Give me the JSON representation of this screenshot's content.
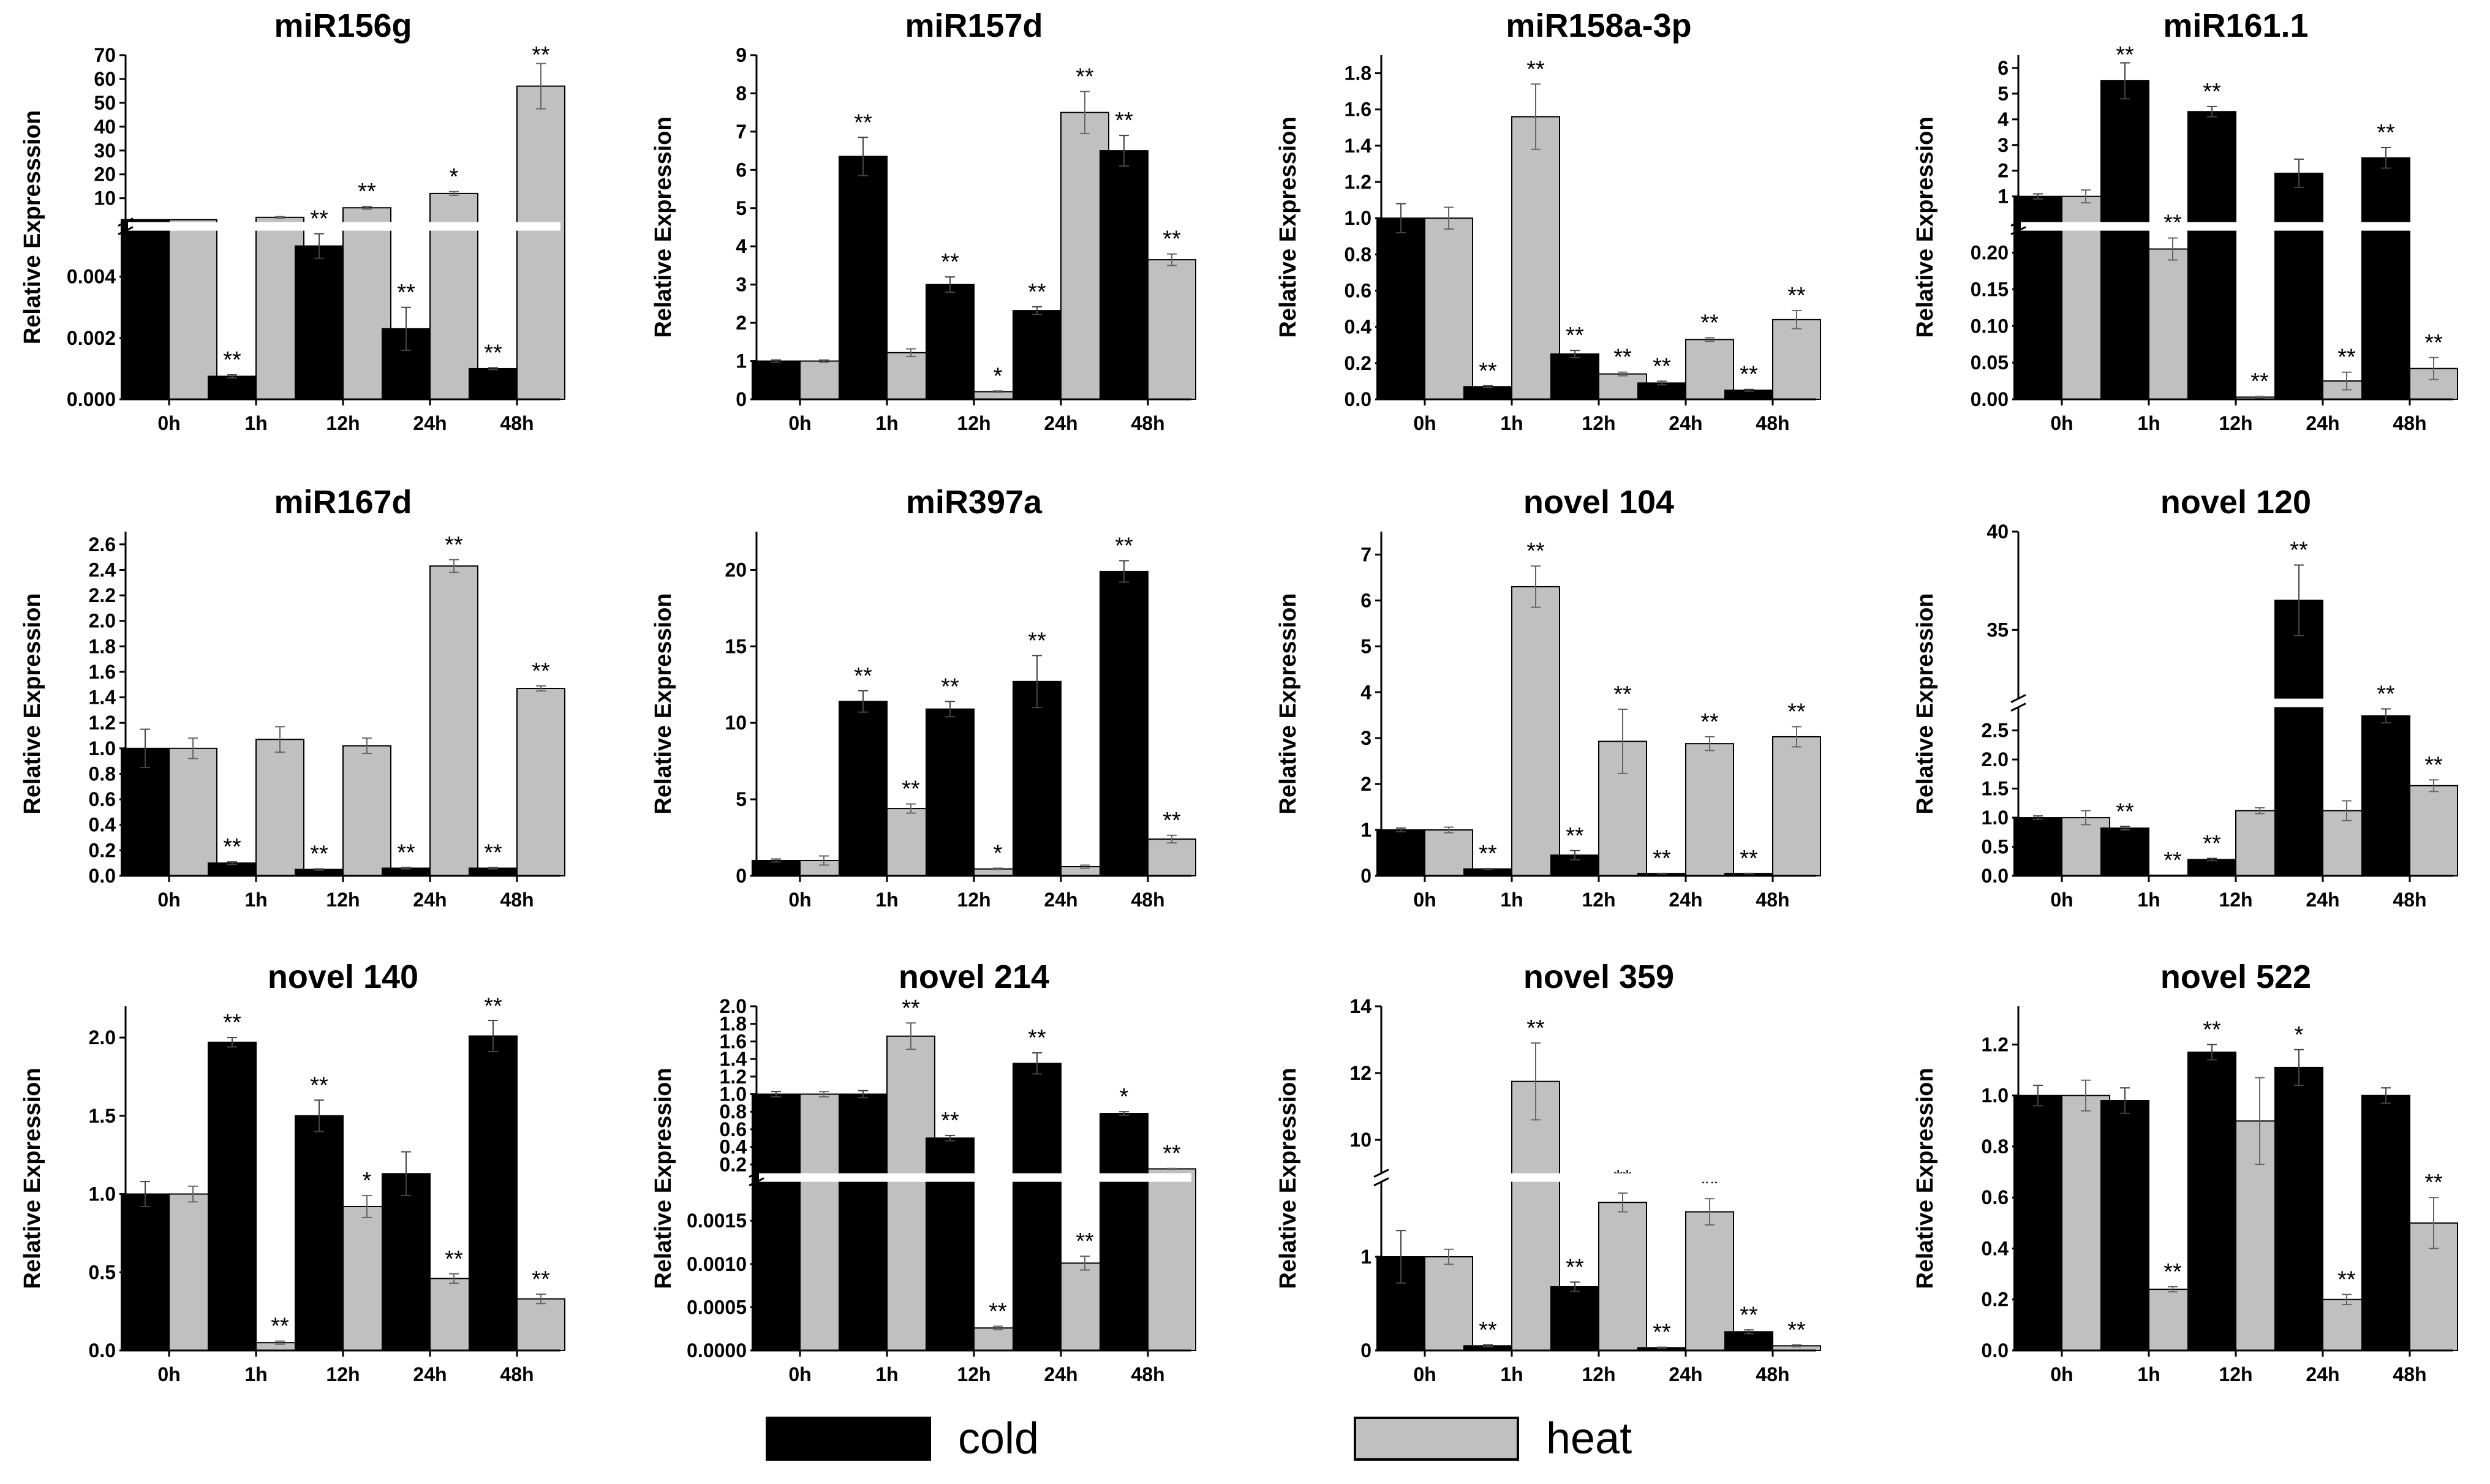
{
  "legend": {
    "cold_label": "cold",
    "heat_label": "heat"
  },
  "colors": {
    "cold": "#000000",
    "heat": "#c0c0c0",
    "axis": "#000000"
  },
  "chart_data": [
    {
      "type": "bar",
      "title": "miR156g",
      "ylabel": "Relative Expresssion",
      "categories": [
        "0h",
        "1h",
        "12h",
        "24h",
        "48h"
      ],
      "axis_break": {
        "lower_range": [
          0,
          0.0055
        ],
        "upper_range": [
          0,
          70
        ],
        "lower_ticks": [
          "0.000",
          "0.002",
          "0.004"
        ],
        "upper_ticks": [
          "10",
          "20",
          "30",
          "40",
          "50",
          "60",
          "70"
        ]
      },
      "series": [
        {
          "name": "cold",
          "values": [
            1.0,
            0.00075,
            0.005,
            0.0023,
            0.001
          ],
          "errors": [
            0,
            5e-05,
            0.0004,
            0.0007,
            3e-05
          ],
          "sig": [
            "",
            "**",
            "**",
            "**",
            "**"
          ]
        },
        {
          "name": "heat",
          "values": [
            1.0,
            2.0,
            6.0,
            12.0,
            57.0
          ],
          "errors": [
            0,
            0.3,
            0.6,
            0.8,
            9.5
          ],
          "sig": [
            "",
            "",
            "**",
            "*",
            "**"
          ]
        }
      ]
    },
    {
      "type": "bar",
      "title": "miR157d",
      "ylabel": "Relative Expression",
      "categories": [
        "0h",
        "1h",
        "12h",
        "24h",
        "48h"
      ],
      "ylim": [
        0,
        9
      ],
      "yticks": [
        "0",
        "1",
        "2",
        "3",
        "4",
        "5",
        "6",
        "7",
        "8",
        "9"
      ],
      "series": [
        {
          "name": "cold",
          "values": [
            1.0,
            6.35,
            3.0,
            2.32,
            6.5
          ],
          "errors": [
            0.03,
            0.5,
            0.2,
            0.1,
            0.4
          ],
          "sig": [
            "",
            "**",
            "**",
            "**",
            "**"
          ]
        },
        {
          "name": "heat",
          "values": [
            1.0,
            1.22,
            0.2,
            7.5,
            3.65
          ],
          "errors": [
            0.03,
            0.1,
            0.02,
            0.55,
            0.15
          ],
          "sig": [
            "",
            "",
            "*",
            "**",
            "**"
          ]
        }
      ]
    },
    {
      "type": "bar",
      "title": "miR158a-3p",
      "ylabel": "Relative Expression",
      "categories": [
        "0h",
        "1h",
        "12h",
        "24h",
        "48h"
      ],
      "ylim": [
        0,
        1.9
      ],
      "yticks": [
        "0.0",
        "0.2",
        "0.4",
        "0.6",
        "0.8",
        "1.0",
        "1.2",
        "1.4",
        "1.6",
        "1.8"
      ],
      "series": [
        {
          "name": "cold",
          "values": [
            1.0,
            0.07,
            0.25,
            0.09,
            0.05
          ],
          "errors": [
            0.08,
            0.005,
            0.02,
            0.01,
            0.005
          ],
          "sig": [
            "",
            "**",
            "**",
            "**",
            "**"
          ]
        },
        {
          "name": "heat",
          "values": [
            1.0,
            1.56,
            0.14,
            0.33,
            0.44
          ],
          "errors": [
            0.06,
            0.18,
            0.01,
            0.01,
            0.05
          ],
          "sig": [
            "",
            "**",
            "**",
            "**",
            "**"
          ]
        }
      ]
    },
    {
      "type": "bar",
      "title": "miR161.1",
      "ylabel": "Relative Expression",
      "categories": [
        "0h",
        "1h",
        "12h",
        "24h",
        "48h"
      ],
      "axis_break": {
        "lower_range": [
          0,
          0.23
        ],
        "upper_range": [
          0,
          6.5
        ],
        "lower_ticks": [
          "0.00",
          "0.05",
          "0.10",
          "0.15",
          "0.20"
        ],
        "upper_ticks": [
          "1",
          "2",
          "3",
          "4",
          "5",
          "6"
        ]
      },
      "series": [
        {
          "name": "cold",
          "values": [
            1.0,
            5.5,
            4.3,
            1.9,
            2.5
          ],
          "errors": [
            0.1,
            0.7,
            0.2,
            0.55,
            0.4
          ],
          "sig": [
            "",
            "**",
            "**",
            "",
            "**"
          ]
        },
        {
          "name": "heat",
          "values": [
            1.0,
            0.205,
            0.003,
            0.025,
            0.042
          ],
          "errors": [
            0.25,
            0.015,
            0.001,
            0.012,
            0.015
          ],
          "sig": [
            "",
            "**",
            "**",
            "**",
            "**"
          ]
        }
      ]
    },
    {
      "type": "bar",
      "title": "miR167d",
      "ylabel": "Relative Expression",
      "categories": [
        "0h",
        "1h",
        "12h",
        "24h",
        "48h"
      ],
      "ylim": [
        0,
        2.7
      ],
      "yticks": [
        "0.0",
        "0.2",
        "0.4",
        "0.6",
        "0.8",
        "1.0",
        "1.2",
        "1.4",
        "1.6",
        "1.8",
        "2.0",
        "2.2",
        "2.4",
        "2.6"
      ],
      "series": [
        {
          "name": "cold",
          "values": [
            1.0,
            0.1,
            0.05,
            0.06,
            0.06
          ],
          "errors": [
            0.15,
            0.01,
            0.005,
            0.005,
            0.005
          ],
          "sig": [
            "",
            "**",
            "**",
            "**",
            "**"
          ]
        },
        {
          "name": "heat",
          "values": [
            1.0,
            1.07,
            1.02,
            2.43,
            1.47
          ],
          "errors": [
            0.08,
            0.1,
            0.06,
            0.05,
            0.02
          ],
          "sig": [
            "",
            "",
            "",
            "**",
            "**"
          ]
        }
      ]
    },
    {
      "type": "bar",
      "title": "miR397a",
      "ylabel": "Relative Expression",
      "categories": [
        "0h",
        "1h",
        "12h",
        "24h",
        "48h"
      ],
      "ylim": [
        0,
        22.5
      ],
      "yticks": [
        "0",
        "5",
        "10",
        "15",
        "20"
      ],
      "series": [
        {
          "name": "cold",
          "values": [
            1.0,
            11.4,
            10.9,
            12.7,
            19.9
          ],
          "errors": [
            0.1,
            0.7,
            0.5,
            1.7,
            0.7
          ],
          "sig": [
            "",
            "**",
            "**",
            "**",
            "**"
          ]
        },
        {
          "name": "heat",
          "values": [
            1.0,
            4.4,
            0.45,
            0.6,
            2.4
          ],
          "errors": [
            0.3,
            0.3,
            0.05,
            0.1,
            0.25
          ],
          "sig": [
            "",
            "**",
            "*",
            "",
            "**"
          ]
        }
      ]
    },
    {
      "type": "bar",
      "title": "novel 104",
      "ylabel": "Relative Expression",
      "categories": [
        "0h",
        "1h",
        "12h",
        "24h",
        "48h"
      ],
      "ylim": [
        0,
        7.5
      ],
      "yticks": [
        "0",
        "1",
        "2",
        "3",
        "4",
        "5",
        "6",
        "7"
      ],
      "series": [
        {
          "name": "cold",
          "values": [
            1.0,
            0.15,
            0.45,
            0.05,
            0.05
          ],
          "errors": [
            0.04,
            0.01,
            0.1,
            0.005,
            0.005
          ],
          "sig": [
            "",
            "**",
            "**",
            "**",
            "**"
          ]
        },
        {
          "name": "heat",
          "values": [
            1.0,
            6.3,
            2.93,
            2.88,
            3.03
          ],
          "errors": [
            0.06,
            0.45,
            0.7,
            0.15,
            0.22
          ],
          "sig": [
            "",
            "**",
            "**",
            "**",
            "**"
          ]
        }
      ]
    },
    {
      "type": "bar",
      "title": "novel 120",
      "ylabel": "Relative Expression",
      "categories": [
        "0h",
        "1h",
        "12h",
        "24h",
        "48h"
      ],
      "axis_break": {
        "lower_range": [
          0,
          2.9
        ],
        "upper_range": [
          31.5,
          40
        ],
        "lower_ticks": [
          "0.0",
          "0.5",
          "1.0",
          "1.5",
          "2.0",
          "2.5"
        ],
        "upper_ticks": [
          "35",
          "40"
        ]
      },
      "series": [
        {
          "name": "cold",
          "values": [
            1.0,
            0.82,
            0.28,
            36.5,
            2.75
          ],
          "errors": [
            0.03,
            0.03,
            0.02,
            1.8,
            0.12
          ],
          "sig": [
            "",
            "**",
            "**",
            "**",
            "**"
          ]
        },
        {
          "name": "heat",
          "values": [
            1.0,
            0.01,
            1.12,
            1.12,
            1.55
          ],
          "errors": [
            0.12,
            0.002,
            0.05,
            0.17,
            0.1
          ],
          "sig": [
            "",
            "**",
            "",
            "",
            "**"
          ]
        }
      ]
    },
    {
      "type": "bar",
      "title": "novel 140",
      "ylabel": "Relative Expression",
      "categories": [
        "0h",
        "1h",
        "12h",
        "24h",
        "48h"
      ],
      "ylim": [
        0,
        2.2
      ],
      "yticks": [
        "0.0",
        "0.5",
        "1.0",
        "1.5",
        "2.0"
      ],
      "series": [
        {
          "name": "cold",
          "values": [
            1.0,
            1.97,
            1.5,
            1.13,
            2.01
          ],
          "errors": [
            0.08,
            0.03,
            0.1,
            0.14,
            0.1
          ],
          "sig": [
            "",
            "**",
            "**",
            "",
            "**"
          ]
        },
        {
          "name": "heat",
          "values": [
            1.0,
            0.05,
            0.92,
            0.46,
            0.33
          ],
          "errors": [
            0.05,
            0.01,
            0.07,
            0.03,
            0.03
          ],
          "sig": [
            "",
            "**",
            "*",
            "**",
            "**"
          ]
        }
      ]
    },
    {
      "type": "bar",
      "title": "novel 214",
      "ylabel": "Relative Expression",
      "categories": [
        "0h",
        "1h",
        "12h",
        "24h",
        "48h"
      ],
      "axis_break": {
        "lower_range": [
          0,
          0.00195
        ],
        "upper_range": [
          0.1,
          2.0
        ],
        "lower_ticks": [
          "0.0000",
          "0.0005",
          "0.0010",
          "0.0015"
        ],
        "upper_ticks": [
          "0.2",
          "0.4",
          "0.6",
          "0.8",
          "1.0",
          "1.2",
          "1.4",
          "1.6",
          "1.8",
          "2.0"
        ]
      },
      "series": [
        {
          "name": "cold",
          "values": [
            1.0,
            1.0,
            0.5,
            1.35,
            0.78
          ],
          "errors": [
            0.03,
            0.04,
            0.03,
            0.12,
            0.02
          ],
          "sig": [
            "",
            "",
            "**",
            "**",
            "*"
          ]
        },
        {
          "name": "heat",
          "values": [
            1.0,
            1.66,
            0.00026,
            0.00101,
            0.15
          ],
          "errors": [
            0.03,
            0.15,
            2e-05,
            8e-05,
            0.005
          ],
          "sig": [
            "",
            "**",
            "**",
            "**",
            "**"
          ]
        }
      ]
    },
    {
      "type": "bar",
      "title": "novel 359",
      "ylabel": "Relative Expression",
      "categories": [
        "0h",
        "1h",
        "12h",
        "24h",
        "48h"
      ],
      "axis_break": {
        "lower_range": [
          0,
          1.8
        ],
        "upper_range": [
          9.0,
          14
        ],
        "lower_ticks": [
          "0",
          "1"
        ],
        "upper_ticks": [
          "10",
          "12",
          "14"
        ]
      },
      "series": [
        {
          "name": "cold",
          "values": [
            1.0,
            0.05,
            0.68,
            0.03,
            0.2
          ],
          "errors": [
            0.28,
            0.01,
            0.05,
            0.005,
            0.02
          ],
          "sig": [
            "",
            "**",
            "**",
            "**",
            "**"
          ]
        },
        {
          "name": "heat",
          "values": [
            1.0,
            11.75,
            1.58,
            1.48,
            0.05
          ],
          "errors": [
            0.08,
            1.15,
            0.1,
            0.14,
            0.01
          ],
          "sig": [
            "",
            "**",
            "**",
            "**",
            "**"
          ]
        }
      ]
    },
    {
      "type": "bar",
      "title": "novel 522",
      "ylabel": "Relative Expression",
      "categories": [
        "0h",
        "1h",
        "12h",
        "24h",
        "48h"
      ],
      "ylim": [
        0,
        1.35
      ],
      "yticks": [
        "0.0",
        "0.2",
        "0.4",
        "0.6",
        "0.8",
        "1.0",
        "1.2"
      ],
      "series": [
        {
          "name": "cold",
          "values": [
            1.0,
            0.98,
            1.17,
            1.11,
            1.0
          ],
          "errors": [
            0.04,
            0.05,
            0.03,
            0.07,
            0.03
          ],
          "sig": [
            "",
            "",
            "**",
            "*",
            ""
          ]
        },
        {
          "name": "heat",
          "values": [
            1.0,
            0.24,
            0.9,
            0.2,
            0.5
          ],
          "errors": [
            0.06,
            0.01,
            0.17,
            0.02,
            0.1
          ],
          "sig": [
            "",
            "**",
            "",
            "**",
            "**"
          ]
        }
      ]
    }
  ]
}
